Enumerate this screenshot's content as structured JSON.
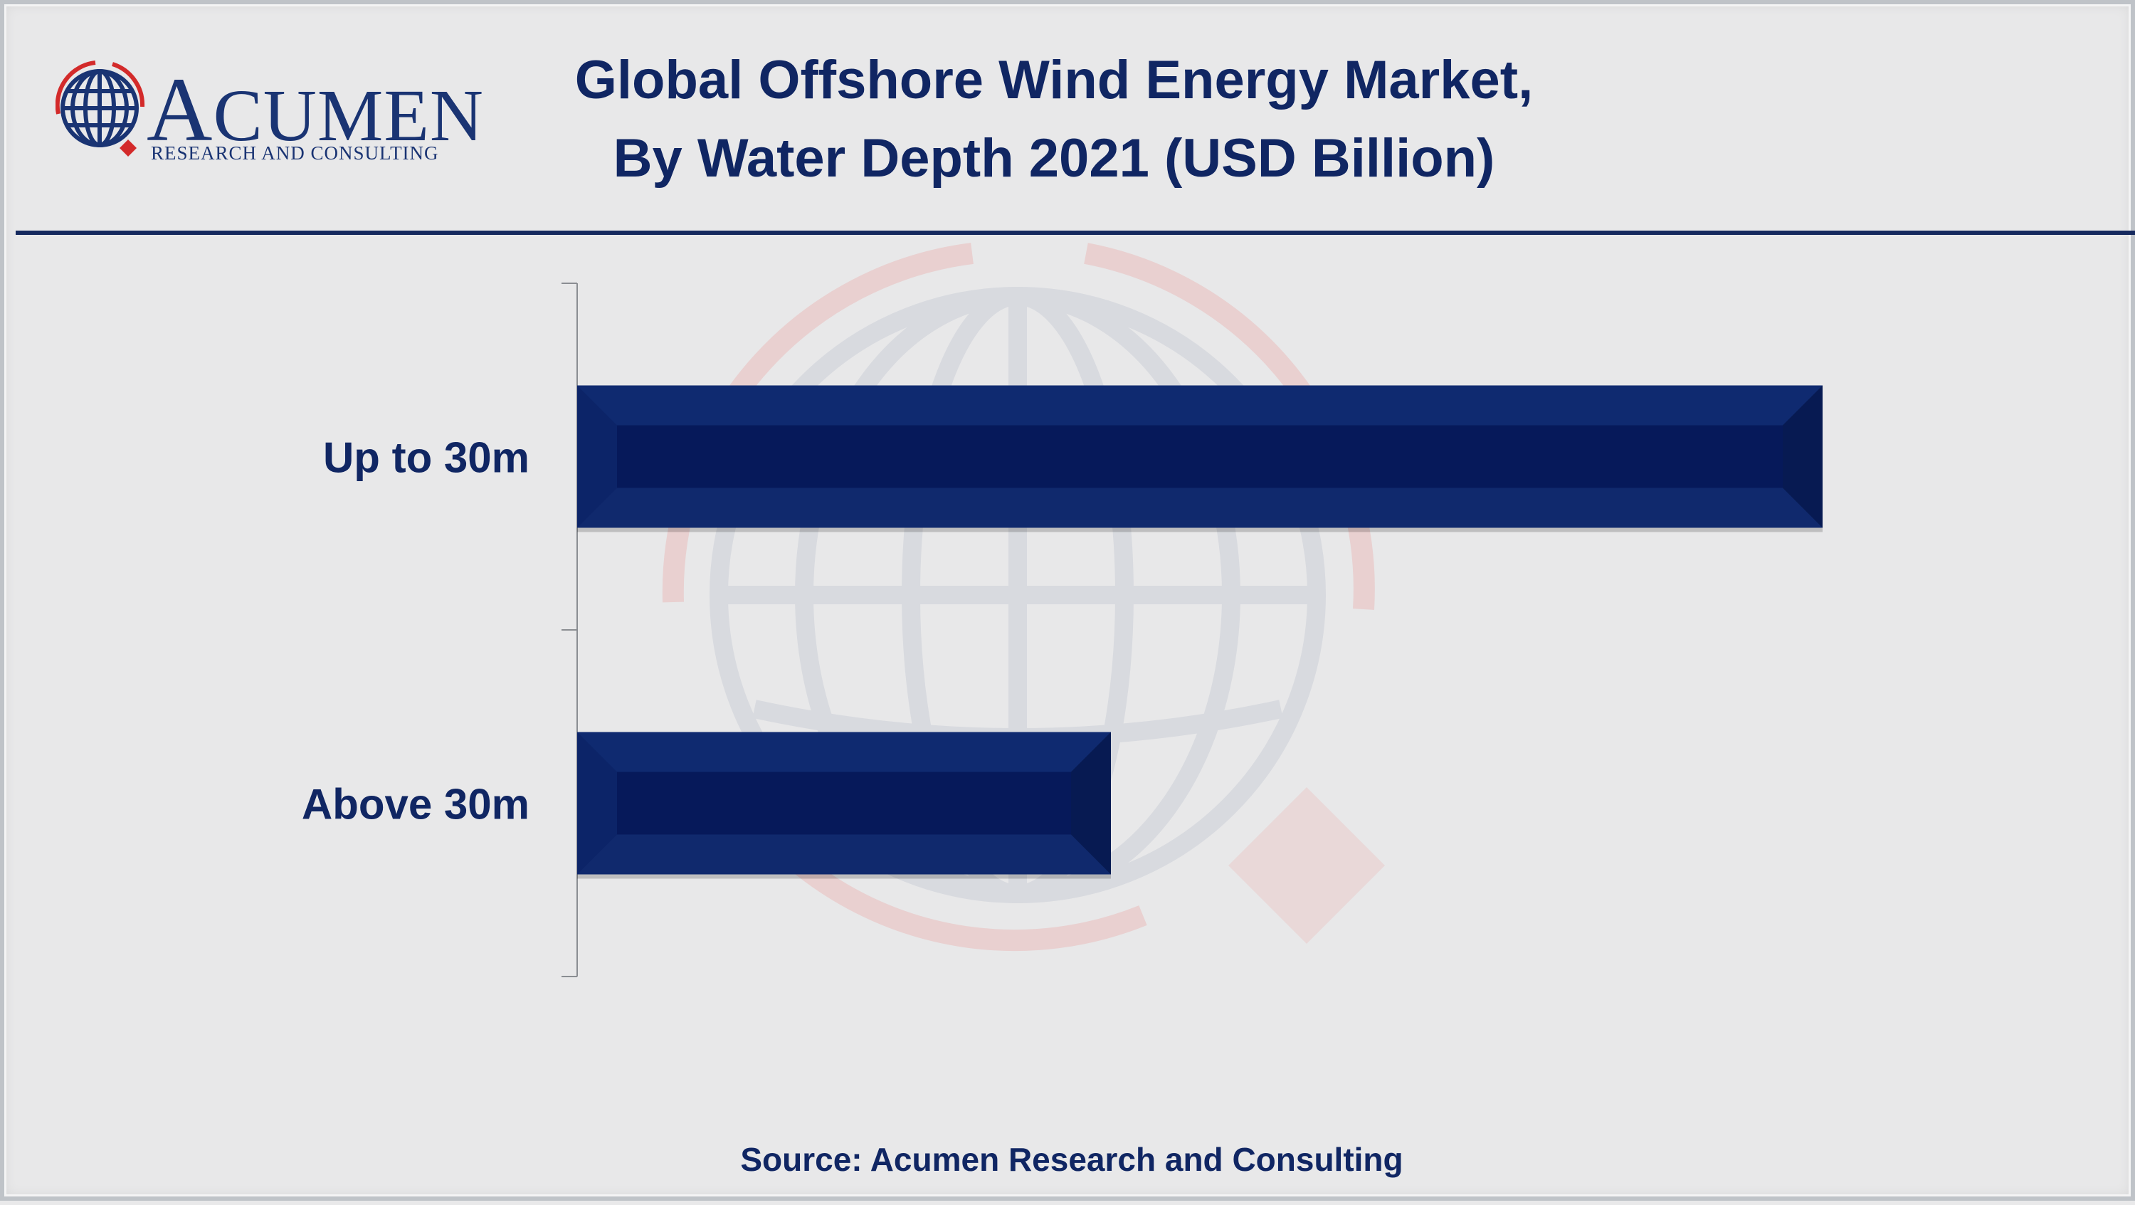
{
  "logo": {
    "name": "ACUMEN",
    "tagline": "RESEARCH AND CONSULTING"
  },
  "title_lines": [
    "Global Offshore Wind Energy Market,",
    "By Water Depth 2021 (USD Billion)"
  ],
  "source": "Source: Acumen Research and Consulting",
  "colors": {
    "bar": "#0c2468",
    "title": "#102663",
    "accent_red": "#d32a2a"
  },
  "chart_data": {
    "type": "bar",
    "orientation": "horizontal",
    "title": "Global Offshore Wind Energy Market, By Water Depth 2021 (USD Billion)",
    "categories": [
      "Up to 30m",
      "Above 30m"
    ],
    "values": [
      7.0,
      3.0
    ],
    "xlim": [
      0,
      8
    ],
    "grid": false,
    "legend": "none",
    "xlabel": "",
    "ylabel": ""
  }
}
